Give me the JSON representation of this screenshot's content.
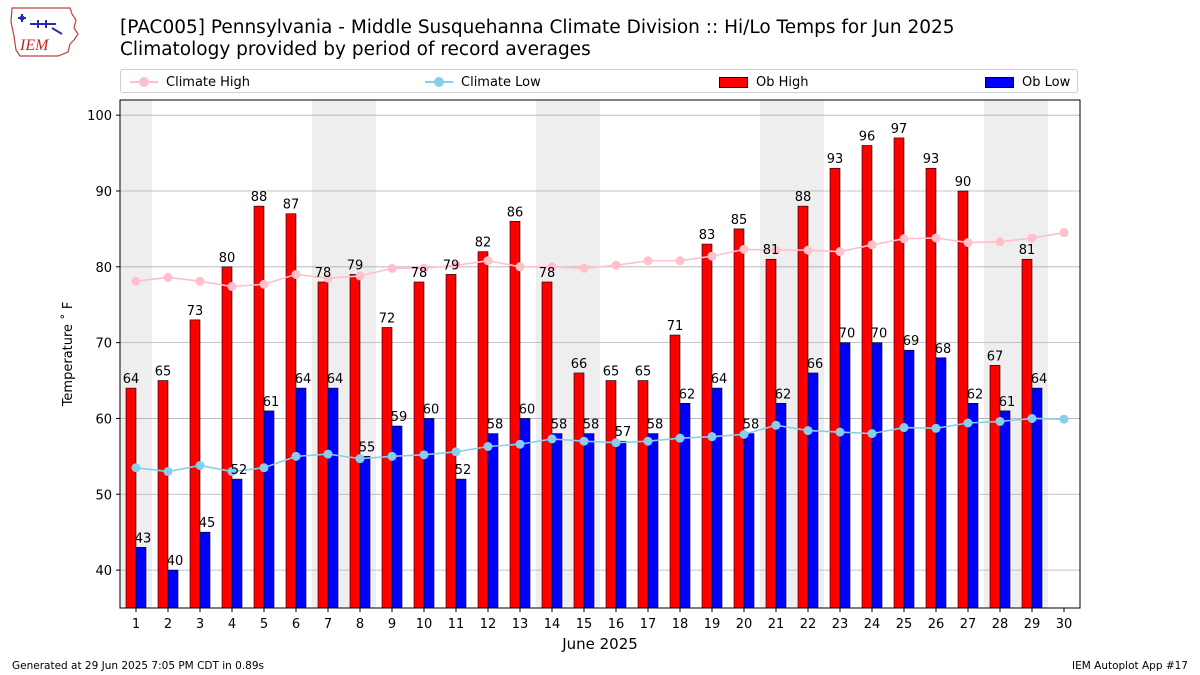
{
  "title": "[PAC005] Pennsylvania - Middle Susquehanna Climate Division :: Hi/Lo Temps for Jun 2025",
  "subtitle": "Climatology provided by period of record averages",
  "logo_text": "IEM",
  "legend": {
    "climate_high": "Climate High",
    "climate_low": "Climate Low",
    "ob_high": "Ob High",
    "ob_low": "Ob Low"
  },
  "footer": {
    "left": "Generated at 29 Jun 2025 7:05 PM CDT in 0.89s",
    "right": "IEM Autoplot App #17"
  },
  "colors": {
    "ob_high": "#ff0000",
    "ob_low": "#0000ff",
    "climate_high": "#ffc0cb",
    "climate_low": "#87ceeb",
    "weekend_band": "#eeeeee",
    "grid": "#b0b0b0"
  },
  "chart_data": {
    "type": "bar",
    "xlabel": "June 2025",
    "ylabel": "Temperature ˚ F",
    "ylim": [
      35,
      102
    ],
    "yticks": [
      40,
      50,
      60,
      70,
      80,
      90,
      100
    ],
    "x": [
      1,
      2,
      3,
      4,
      5,
      6,
      7,
      8,
      9,
      10,
      11,
      12,
      13,
      14,
      15,
      16,
      17,
      18,
      19,
      20,
      21,
      22,
      23,
      24,
      25,
      26,
      27,
      28,
      29,
      30
    ],
    "weekend_days": [
      1,
      7,
      8,
      14,
      15,
      21,
      22,
      28,
      29
    ],
    "grid": "horizontal",
    "legend_position": "top",
    "series": [
      {
        "name": "Ob High",
        "kind": "bar",
        "values": [
          64,
          65,
          73,
          80,
          88,
          87,
          78,
          79,
          72,
          78,
          79,
          82,
          86,
          78,
          66,
          65,
          65,
          71,
          83,
          85,
          81,
          88,
          93,
          96,
          97,
          93,
          90,
          67,
          81,
          null
        ]
      },
      {
        "name": "Ob Low",
        "kind": "bar",
        "values": [
          43,
          40,
          45,
          52,
          61,
          64,
          64,
          55,
          59,
          60,
          52,
          58,
          60,
          58,
          58,
          57,
          58,
          62,
          64,
          58,
          62,
          66,
          70,
          70,
          69,
          68,
          62,
          61,
          64,
          null
        ]
      },
      {
        "name": "Climate High",
        "kind": "line",
        "values": [
          78.1,
          78.6,
          78.1,
          77.4,
          77.7,
          79.0,
          78.5,
          78.8,
          79.8,
          79.8,
          80.2,
          80.8,
          80.0,
          80.0,
          79.8,
          80.2,
          80.8,
          80.8,
          81.4,
          82.3,
          82.2,
          82.2,
          82.0,
          82.9,
          83.7,
          83.8,
          83.2,
          83.3,
          83.8,
          84.5
        ]
      },
      {
        "name": "Climate Low",
        "kind": "line",
        "values": [
          53.5,
          53.0,
          53.8,
          53.0,
          53.5,
          55.0,
          55.3,
          54.7,
          55.0,
          55.2,
          55.6,
          56.3,
          56.6,
          57.3,
          57.0,
          56.8,
          57.0,
          57.4,
          57.6,
          57.9,
          59.1,
          58.4,
          58.2,
          58.0,
          58.8,
          58.7,
          59.4,
          59.6,
          60.0,
          59.9
        ]
      }
    ]
  }
}
